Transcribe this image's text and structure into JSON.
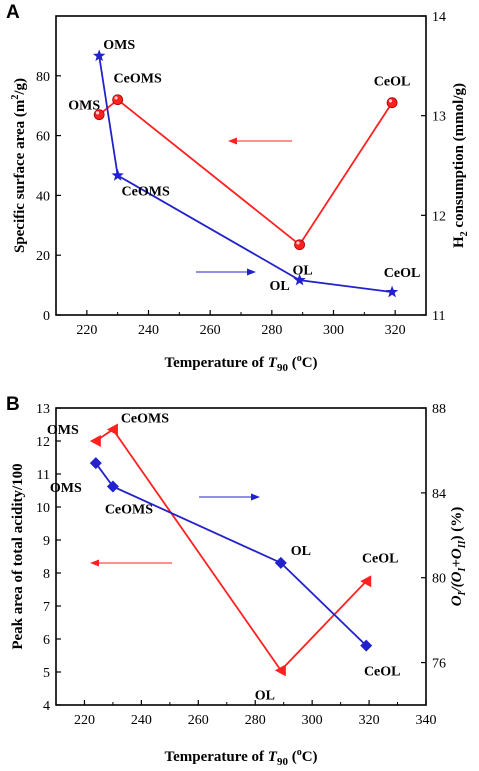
{
  "chart_data": [
    {
      "panel": "A",
      "type": "line",
      "xlabel": {
        "pre": "Temperature of ",
        "var": "T",
        "sub": "90",
        "post": " (",
        "sup": "o",
        "end": "C)"
      },
      "ylabel_left": {
        "pre": "Specific surface area (m",
        "sup": "2",
        "post": "/g)"
      },
      "ylabel_right": {
        "pre": "H",
        "sub": "2",
        "post": " consumption (mmol/g)"
      },
      "xlim": [
        210,
        330
      ],
      "xticks": [
        220,
        240,
        260,
        280,
        300,
        320
      ],
      "ylim_left": [
        0,
        100
      ],
      "yticks_left": [
        0,
        20,
        40,
        60,
        80
      ],
      "ylim_right": [
        11,
        14
      ],
      "yticks_right": [
        11,
        12,
        13,
        14
      ],
      "series": [
        {
          "axis": "left",
          "color": "#ff2020",
          "marker": "sphere",
          "points": [
            {
              "x": 224,
              "y": 67,
              "label": "OMS"
            },
            {
              "x": 230,
              "y": 72,
              "label": "CeOMS"
            },
            {
              "x": 289,
              "y": 23.5,
              "label": "OL"
            },
            {
              "x": 319,
              "y": 71,
              "label": "CeOL"
            }
          ]
        },
        {
          "axis": "right",
          "color": "#2222cc",
          "marker": "star",
          "points": [
            {
              "x": 224,
              "y": 13.6,
              "label": "OMS"
            },
            {
              "x": 230,
              "y": 12.4,
              "label": "CeOMS"
            },
            {
              "x": 289,
              "y": 11.35,
              "label": "OL"
            },
            {
              "x": 319,
              "y": 11.23,
              "label": "CeOL"
            }
          ]
        }
      ]
    },
    {
      "panel": "B",
      "type": "line",
      "xlabel": {
        "pre": "Temperature of ",
        "var": "T",
        "sub": "90",
        "post": " (",
        "sup": "o",
        "end": "C)"
      },
      "ylabel_left": {
        "pre": "Peak area of total acidity/100"
      },
      "ylabel_right": {
        "pre": "O",
        "sub": "I",
        "mid": "/(O",
        "sub2": "I",
        "mid2": "+O",
        "sub3": "II",
        "post": ") (%)"
      },
      "xlim": [
        210,
        340
      ],
      "xticks": [
        220,
        240,
        260,
        280,
        300,
        320,
        340
      ],
      "ylim_left": [
        4,
        13
      ],
      "yticks_left": [
        4,
        5,
        6,
        7,
        8,
        9,
        10,
        11,
        12,
        13
      ],
      "ylim_right": [
        74,
        88
      ],
      "yticks_right": [
        76,
        80,
        84,
        88
      ],
      "series": [
        {
          "axis": "left",
          "color": "#ff2020",
          "marker": "triangle-left",
          "points": [
            {
              "x": 224,
              "y": 12.0,
              "label": "OMS"
            },
            {
              "x": 230,
              "y": 12.35,
              "label": "CeOMS"
            },
            {
              "x": 289,
              "y": 5.05,
              "label": "OL"
            },
            {
              "x": 319,
              "y": 7.75,
              "label": "CeOL"
            }
          ]
        },
        {
          "axis": "right",
          "color": "#2222cc",
          "marker": "diamond",
          "points": [
            {
              "x": 224,
              "y": 85.4,
              "label": "OMS"
            },
            {
              "x": 230,
              "y": 84.3,
              "label": "CeOMS"
            },
            {
              "x": 289,
              "y": 80.7,
              "label": "OL"
            },
            {
              "x": 319,
              "y": 76.8,
              "label": "CeOL"
            }
          ]
        }
      ]
    }
  ]
}
